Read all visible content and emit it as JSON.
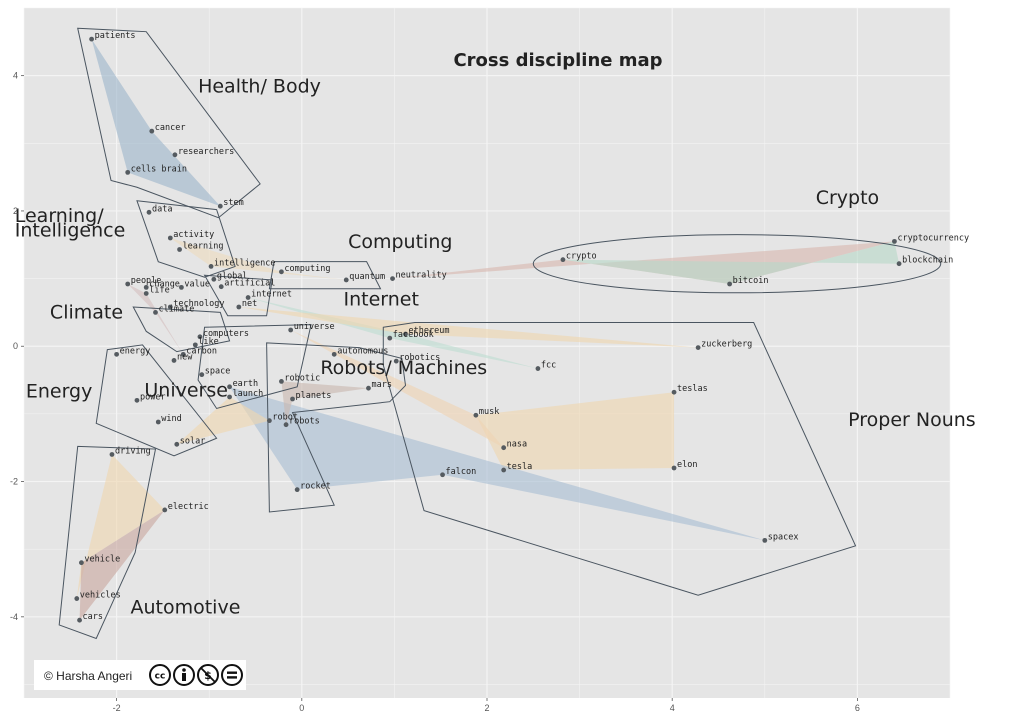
{
  "chart_data": {
    "type": "scatter",
    "title": "Cross discipline map",
    "xlim": [
      -3.0,
      7.0
    ],
    "ylim": [
      -5.2,
      5.0
    ],
    "x_ticks": [
      -2,
      0,
      2,
      4,
      6
    ],
    "y_ticks": [
      -4,
      -2,
      0,
      2,
      4
    ],
    "x_tick_labels": [
      "-2",
      "0",
      "2",
      "4",
      "6"
    ],
    "y_tick_labels": [
      "-4",
      "-2",
      "0",
      "2",
      "4"
    ],
    "grid": true,
    "background": "#e5e5e5",
    "grid_color": "#f4f4f4",
    "points": [
      {
        "label": "patients",
        "x": -2.27,
        "y": 4.54
      },
      {
        "label": "cancer",
        "x": -1.62,
        "y": 3.18
      },
      {
        "label": "researchers",
        "x": -1.37,
        "y": 2.83
      },
      {
        "label": "cells brain",
        "x": -1.88,
        "y": 2.57
      },
      {
        "label": "stem",
        "x": -0.88,
        "y": 2.07
      },
      {
        "label": "data",
        "x": -1.65,
        "y": 1.98
      },
      {
        "label": "activity",
        "x": -1.42,
        "y": 1.6
      },
      {
        "label": "learning",
        "x": -1.32,
        "y": 1.43
      },
      {
        "label": "intelligence",
        "x": -0.98,
        "y": 1.18
      },
      {
        "label": "computing",
        "x": -0.22,
        "y": 1.1
      },
      {
        "label": "global",
        "x": -0.95,
        "y": 0.99
      },
      {
        "label": "artificial",
        "x": -0.87,
        "y": 0.88
      },
      {
        "label": "people",
        "x": -1.88,
        "y": 0.92
      },
      {
        "label": "change",
        "x": -1.68,
        "y": 0.87
      },
      {
        "label": "value",
        "x": -1.3,
        "y": 0.87
      },
      {
        "label": "life",
        "x": -1.68,
        "y": 0.78
      },
      {
        "label": "internet",
        "x": -0.58,
        "y": 0.72
      },
      {
        "label": "net",
        "x": -0.68,
        "y": 0.58
      },
      {
        "label": "technology",
        "x": -1.42,
        "y": 0.58
      },
      {
        "label": "climate",
        "x": -1.58,
        "y": 0.5
      },
      {
        "label": "quantum",
        "x": 0.48,
        "y": 0.98
      },
      {
        "label": "neutrality",
        "x": 0.98,
        "y": 1.0
      },
      {
        "label": "computers",
        "x": -1.1,
        "y": 0.14
      },
      {
        "label": "like",
        "x": -1.15,
        "y": 0.02
      },
      {
        "label": "universe",
        "x": -0.12,
        "y": 0.24
      },
      {
        "label": "ethereum",
        "x": 1.12,
        "y": 0.18
      },
      {
        "label": "facebook",
        "x": 0.95,
        "y": 0.12
      },
      {
        "label": "zuckerberg",
        "x": 4.28,
        "y": -0.02
      },
      {
        "label": "autonomous",
        "x": 0.35,
        "y": -0.12
      },
      {
        "label": "robotics",
        "x": 1.02,
        "y": -0.22
      },
      {
        "label": "fcc",
        "x": 2.55,
        "y": -0.33
      },
      {
        "label": "carbon",
        "x": -1.28,
        "y": -0.12
      },
      {
        "label": "new",
        "x": -1.38,
        "y": -0.21
      },
      {
        "label": "energy",
        "x": -2.0,
        "y": -0.12
      },
      {
        "label": "space",
        "x": -1.08,
        "y": -0.42
      },
      {
        "label": "earth",
        "x": -0.78,
        "y": -0.6
      },
      {
        "label": "launch",
        "x": -0.78,
        "y": -0.75
      },
      {
        "label": "robotic",
        "x": -0.22,
        "y": -0.52
      },
      {
        "label": "mars",
        "x": 0.72,
        "y": -0.62
      },
      {
        "label": "planets",
        "x": -0.1,
        "y": -0.78
      },
      {
        "label": "power",
        "x": -1.78,
        "y": -0.8
      },
      {
        "label": "wind",
        "x": -1.55,
        "y": -1.12
      },
      {
        "label": "solar",
        "x": -1.35,
        "y": -1.45
      },
      {
        "label": "robot",
        "x": -0.35,
        "y": -1.1
      },
      {
        "label": "robots",
        "x": -0.17,
        "y": -1.16
      },
      {
        "label": "musk",
        "x": 1.88,
        "y": -1.02
      },
      {
        "label": "teslas",
        "x": 4.02,
        "y": -0.68
      },
      {
        "label": "nasa",
        "x": 2.18,
        "y": -1.5
      },
      {
        "label": "tesla",
        "x": 2.18,
        "y": -1.83
      },
      {
        "label": "falcon",
        "x": 1.52,
        "y": -1.9
      },
      {
        "label": "elon",
        "x": 4.02,
        "y": -1.8
      },
      {
        "label": "driving",
        "x": -2.05,
        "y": -1.6
      },
      {
        "label": "rocket",
        "x": -0.05,
        "y": -2.12
      },
      {
        "label": "electric",
        "x": -1.48,
        "y": -2.42
      },
      {
        "label": "spacex",
        "x": 5.0,
        "y": -2.87
      },
      {
        "label": "vehicle",
        "x": -2.38,
        "y": -3.2
      },
      {
        "label": "vehicles",
        "x": -2.43,
        "y": -3.73
      },
      {
        "label": "cars",
        "x": -2.4,
        "y": -4.05
      },
      {
        "label": "crypto",
        "x": 2.82,
        "y": 1.28
      },
      {
        "label": "cryptocurrency",
        "x": 6.4,
        "y": 1.55
      },
      {
        "label": "blockchain",
        "x": 6.45,
        "y": 1.22
      },
      {
        "label": "bitcoin",
        "x": 4.62,
        "y": 0.92
      }
    ],
    "groups": [
      {
        "name": "Health/ Body",
        "color": "#9eb6cc",
        "label_x": -1.12,
        "label_y": 3.75,
        "members": [
          "patients",
          "cancer",
          "cells brain",
          "stem"
        ],
        "hull": [
          [
            -2.42,
            4.7
          ],
          [
            -1.68,
            4.65
          ],
          [
            -0.45,
            2.4
          ],
          [
            -0.9,
            1.9
          ],
          [
            -1.78,
            2.35
          ],
          [
            -2.06,
            2.45
          ]
        ]
      },
      {
        "name": "Learning/ Intelligence",
        "color": "#eedcbe",
        "label_x": -3.1,
        "label_y": 1.84,
        "label2_y": 1.62,
        "members": [
          "data",
          "activity",
          "learning",
          "intelligence"
        ],
        "hull": [
          [
            -1.78,
            2.15
          ],
          [
            -0.92,
            2.02
          ],
          [
            -0.72,
            1.18
          ],
          [
            -1.05,
            1.02
          ],
          [
            -1.55,
            1.25
          ]
        ]
      },
      {
        "name": "Computing",
        "color": "#e0c9b8",
        "label_x": 0.5,
        "label_y": 1.45,
        "members": [
          "computing",
          "quantum",
          "neutrality"
        ],
        "hull": [
          [
            -0.3,
            1.25
          ],
          [
            0.7,
            1.25
          ],
          [
            0.85,
            0.85
          ],
          [
            -0.35,
            0.85
          ]
        ]
      },
      {
        "name": "Internet",
        "color": "#bfddd2",
        "label_x": 0.45,
        "label_y": 0.6,
        "members": [
          "internet",
          "net",
          "artificial",
          "global"
        ],
        "hull": [
          [
            -1.05,
            1.05
          ],
          [
            -0.32,
            0.98
          ],
          [
            -0.38,
            0.45
          ],
          [
            -0.8,
            0.45
          ]
        ]
      },
      {
        "name": "Climate",
        "color": "#d5c0c0",
        "label_x": -2.72,
        "label_y": 0.41,
        "members": [
          "climate",
          "technology",
          "people",
          "change",
          "life"
        ],
        "hull": [
          [
            -1.82,
            0.58
          ],
          [
            -0.88,
            0.5
          ],
          [
            -0.78,
            0.08
          ],
          [
            -1.35,
            -0.08
          ],
          [
            -1.68,
            0.22
          ]
        ]
      },
      {
        "name": "Energy",
        "color": "#efd7b0",
        "label_x": -2.98,
        "label_y": -0.76,
        "members": [
          "energy",
          "power",
          "wind",
          "solar"
        ],
        "hull": [
          [
            -2.1,
            -0.05
          ],
          [
            -1.72,
            0.02
          ],
          [
            -0.92,
            -1.36
          ],
          [
            -1.38,
            -1.62
          ],
          [
            -2.22,
            -1.14
          ]
        ]
      },
      {
        "name": "Universe",
        "color": "#a9bfd3",
        "label_x": -1.7,
        "label_y": -0.74,
        "members": [
          "universe",
          "space",
          "earth",
          "launch",
          "computers"
        ],
        "hull": [
          [
            -1.05,
            0.28
          ],
          [
            0.1,
            0.32
          ],
          [
            -0.05,
            -0.6
          ],
          [
            -0.92,
            -0.92
          ],
          [
            -1.12,
            -0.5
          ]
        ]
      },
      {
        "name": "Robots/ Machines",
        "color": "#c9b8b0",
        "label_x": 0.2,
        "label_y": -0.41,
        "members": [
          "autonomous",
          "robotics",
          "robotic",
          "mars",
          "planets",
          "robot",
          "robots",
          "rocket"
        ],
        "hull": [
          [
            -0.38,
            0.05
          ],
          [
            0.62,
            -0.02
          ],
          [
            1.08,
            -0.18
          ],
          [
            1.12,
            -0.58
          ],
          [
            0.95,
            -0.82
          ],
          [
            -0.1,
            -0.98
          ],
          [
            0.35,
            -2.35
          ],
          [
            -0.35,
            -2.45
          ]
        ]
      },
      {
        "name": "Crypto",
        "color": "#b8d8c8",
        "label_x": 5.55,
        "label_y": 2.1,
        "members": [
          "crypto",
          "cryptocurrency",
          "blockchain",
          "bitcoin"
        ],
        "ellipse": {
          "cx": 4.7,
          "cy": 1.22,
          "rx": 2.2,
          "ry": 0.43
        }
      },
      {
        "name": "Proper Nouns",
        "color": "#efd3b3",
        "label_x": 5.9,
        "label_y": -1.18,
        "members": [
          "zuckerberg",
          "musk",
          "teslas",
          "nasa",
          "tesla",
          "falcon",
          "elon",
          "spacex",
          "fcc",
          "facebook",
          "ethereum"
        ],
        "hull": [
          [
            0.88,
            0.28
          ],
          [
            1.22,
            0.35
          ],
          [
            4.88,
            0.35
          ],
          [
            5.98,
            -2.95
          ],
          [
            4.28,
            -3.68
          ],
          [
            1.32,
            -2.43
          ],
          [
            0.88,
            -0.28
          ]
        ]
      },
      {
        "name": "Automotive",
        "color": "#d8bfae",
        "label_x": -1.85,
        "label_y": -3.95,
        "members": [
          "driving",
          "electric",
          "vehicle",
          "vehicles",
          "cars"
        ],
        "hull": [
          [
            -2.42,
            -1.48
          ],
          [
            -1.58,
            -1.52
          ],
          [
            -1.8,
            -3.05
          ],
          [
            -2.22,
            -4.32
          ],
          [
            -2.62,
            -4.12
          ]
        ]
      }
    ],
    "overlays": [
      {
        "color": "#9eb6cc",
        "points": [
          [
            -2.27,
            4.54
          ],
          [
            -1.62,
            3.18
          ],
          [
            -0.88,
            2.07
          ],
          [
            -1.88,
            2.57
          ]
        ]
      },
      {
        "color": "#eedcbe",
        "points": [
          [
            -1.42,
            1.6
          ],
          [
            -0.22,
            1.1
          ],
          [
            0.48,
            0.98
          ],
          [
            -0.98,
            1.18
          ]
        ]
      },
      {
        "color": "#d9b8b0",
        "points": [
          [
            0.98,
            1.0
          ],
          [
            6.4,
            1.55
          ],
          [
            4.62,
            0.92
          ],
          [
            2.82,
            1.28
          ]
        ]
      },
      {
        "color": "#b8d8c8",
        "points": [
          [
            2.82,
            1.28
          ],
          [
            6.45,
            1.22
          ],
          [
            6.4,
            1.55
          ],
          [
            4.62,
            0.92
          ]
        ]
      },
      {
        "color": "#bfddd2",
        "points": [
          [
            -0.58,
            0.72
          ],
          [
            1.12,
            0.18
          ],
          [
            2.55,
            -0.33
          ],
          [
            0.95,
            0.12
          ]
        ]
      },
      {
        "color": "#efd7b0",
        "points": [
          [
            1.88,
            -1.02
          ],
          [
            4.02,
            -0.68
          ],
          [
            4.02,
            -1.8
          ],
          [
            2.18,
            -1.83
          ]
        ]
      },
      {
        "color": "#efd7b0",
        "points": [
          [
            -0.68,
            0.58
          ],
          [
            4.28,
            -0.02
          ],
          [
            1.12,
            0.18
          ]
        ]
      },
      {
        "color": "#a9bfd3",
        "points": [
          [
            -0.78,
            -0.6
          ],
          [
            5.0,
            -2.87
          ],
          [
            1.52,
            -1.9
          ],
          [
            -0.05,
            -2.12
          ]
        ]
      },
      {
        "color": "#d5c0c0",
        "points": [
          [
            -1.88,
            0.92
          ],
          [
            -1.58,
            0.5
          ],
          [
            -1.28,
            -0.12
          ],
          [
            -1.68,
            0.78
          ]
        ]
      },
      {
        "color": "#efd7b0",
        "points": [
          [
            -2.05,
            -1.6
          ],
          [
            -1.48,
            -2.42
          ],
          [
            -2.38,
            -3.2
          ],
          [
            -2.43,
            -3.73
          ]
        ]
      },
      {
        "color": "#c9a8a0",
        "points": [
          [
            -2.38,
            -3.2
          ],
          [
            -1.48,
            -2.42
          ],
          [
            -2.4,
            -4.05
          ]
        ]
      },
      {
        "color": "#efd7b0",
        "points": [
          [
            -1.35,
            -1.45
          ],
          [
            -0.78,
            -0.75
          ],
          [
            -0.35,
            -1.1
          ]
        ]
      },
      {
        "color": "#c9b8b0",
        "points": [
          [
            -0.22,
            -0.52
          ],
          [
            0.72,
            -0.62
          ],
          [
            -0.1,
            -0.78
          ],
          [
            -0.17,
            -1.16
          ]
        ]
      },
      {
        "color": "#efd3b3",
        "points": [
          [
            -0.12,
            0.24
          ],
          [
            2.18,
            -1.5
          ],
          [
            1.88,
            -1.02
          ]
        ]
      }
    ]
  },
  "credit": {
    "text": "© Harsha Angeri",
    "badges": [
      "cc-icon",
      "by-icon",
      "nc-icon",
      "nd-icon"
    ]
  }
}
